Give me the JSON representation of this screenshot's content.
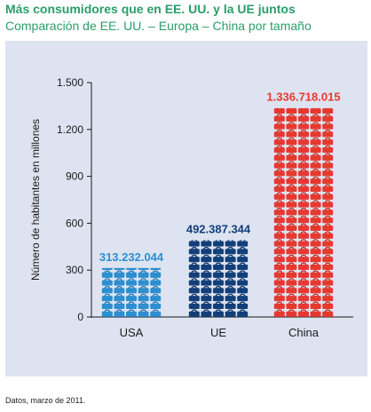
{
  "header": {
    "title": "Más consumidores que en EE. UU. y la UE juntos",
    "subtitle": "Comparación de EE. UU. – Europa – China por tamaño"
  },
  "footer": {
    "source": "Datos, marzo de 2011."
  },
  "chart_data": {
    "type": "bar",
    "title": "Más consumidores que en EE. UU. y la UE juntos",
    "subtitle": "Comparación de EE. UU. – Europa – China por tamaño",
    "ylabel": "Número de habitantes en millones",
    "xlabel": "",
    "categories": [
      "USA",
      "UE",
      "China"
    ],
    "values": [
      313.232044,
      492.387344,
      1336.718015
    ],
    "value_labels": [
      "313.232.044",
      "492.387.344",
      "1.336.718.015"
    ],
    "yticks": [
      0,
      300,
      600,
      900,
      1200,
      1500
    ],
    "ytick_labels": [
      "0",
      "300",
      "600",
      "900",
      "1.200",
      "1.500"
    ],
    "ylim": [
      0,
      1500
    ],
    "grid": false,
    "legend": "none",
    "colors": [
      "#2b8fd1",
      "#123f7a",
      "#e8382e"
    ],
    "bar_style": "stacked-shopping-bags"
  }
}
